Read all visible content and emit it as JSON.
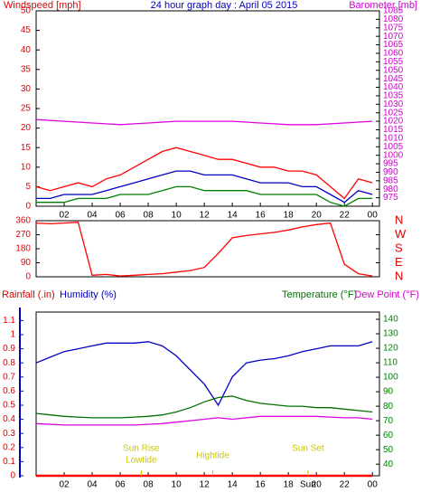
{
  "chart_data": [
    {
      "type": "line",
      "title": "24 hour graph day : April 05 2015",
      "ylabel": "Windspeed [mph]",
      "y2label": "Barometer [mb]",
      "x": [
        0,
        1,
        2,
        3,
        4,
        5,
        6,
        7,
        8,
        9,
        10,
        11,
        12,
        13,
        14,
        15,
        16,
        17,
        18,
        19,
        20,
        21,
        22,
        23,
        24
      ],
      "xlim": [
        0,
        24.5
      ],
      "xticks": [
        {
          "value": 2,
          "label": "02"
        },
        {
          "value": 4,
          "label": "04"
        },
        {
          "value": 6,
          "label": "06"
        },
        {
          "value": 8,
          "label": "08"
        },
        10,
        12,
        14,
        16,
        18,
        20,
        22,
        {
          "value": 24,
          "label": "00"
        }
      ],
      "ylim": [
        0,
        50
      ],
      "yticks": [
        0,
        5,
        10,
        15,
        20,
        25,
        30,
        35,
        40,
        45,
        50
      ],
      "ytick_color": "#e00000",
      "y2lim": [
        970,
        1085
      ],
      "y2ticks": [
        975,
        980,
        985,
        990,
        995,
        1000,
        1005,
        1010,
        1015,
        1020,
        1025,
        1030,
        1035,
        1040,
        1045,
        1050,
        1055,
        1060,
        1065,
        1070,
        1075,
        1080,
        1085
      ],
      "y2tick_color": "#d000d0",
      "series": [
        {
          "color": "#ff0000",
          "values": [
            5,
            4,
            5,
            6,
            5,
            7,
            8,
            10,
            12,
            14,
            15,
            14,
            13,
            12,
            12,
            11,
            10,
            10,
            9,
            9,
            8,
            5,
            2,
            7,
            6
          ]
        },
        {
          "color": "#0000c0",
          "values": [
            2,
            2,
            3,
            3,
            3,
            4,
            5,
            6,
            7,
            8,
            9,
            9,
            8,
            8,
            8,
            7,
            6,
            6,
            6,
            5,
            5,
            3,
            1,
            4,
            3
          ]
        },
        {
          "color": "#008000",
          "values": [
            1,
            1,
            1,
            2,
            2,
            2,
            3,
            3,
            3,
            4,
            5,
            5,
            4,
            4,
            4,
            4,
            3,
            3,
            3,
            3,
            3,
            1,
            0,
            2,
            2
          ]
        },
        {
          "color": "#e000e0",
          "axis": "y2",
          "values": [
            1021,
            1020.5,
            1020,
            1019.5,
            1019,
            1018.5,
            1018,
            1018.5,
            1019,
            1019.5,
            1020,
            1020,
            1020,
            1020,
            1020,
            1019.5,
            1019,
            1018.5,
            1018,
            1018,
            1018,
            1018.5,
            1019,
            1019.5,
            1020
          ]
        }
      ]
    },
    {
      "type": "line",
      "x": [
        0,
        1,
        2,
        3,
        4,
        5,
        6,
        7,
        8,
        9,
        10,
        11,
        12,
        13,
        14,
        15,
        16,
        17,
        18,
        19,
        20,
        21,
        22,
        23,
        24
      ],
      "xlim": [
        0,
        24.5
      ],
      "ylim": [
        0,
        360
      ],
      "yticks": [
        0,
        90,
        180,
        270,
        360
      ],
      "ytick_color": "#e00000",
      "y2lim": [
        0,
        360
      ],
      "y2ticks": [
        {
          "value": 0,
          "label": "N"
        },
        {
          "value": 90,
          "label": "E"
        },
        {
          "value": 180,
          "label": "S"
        },
        {
          "value": 270,
          "label": "W"
        },
        {
          "value": 360,
          "label": "N"
        }
      ],
      "y2tick_color": "#e00000",
      "series": [
        {
          "color": "#ff0000",
          "values": [
            345,
            340,
            345,
            350,
            10,
            15,
            5,
            10,
            15,
            20,
            30,
            40,
            60,
            150,
            250,
            265,
            275,
            285,
            300,
            320,
            335,
            345,
            80,
            20,
            5
          ]
        }
      ]
    },
    {
      "type": "line",
      "ylabel": "Rainfall (.in)",
      "ylabel2": "Humidity (%)",
      "y2label": "Temperature (°F)",
      "y2label2": "Dew Point (°F)",
      "x": [
        0,
        1,
        2,
        3,
        4,
        5,
        6,
        7,
        8,
        9,
        10,
        11,
        12,
        13,
        14,
        15,
        16,
        17,
        18,
        19,
        20,
        21,
        22,
        23,
        24
      ],
      "xlim": [
        0,
        24.5
      ],
      "xticks": [
        {
          "value": 2,
          "label": "02"
        },
        {
          "value": 4,
          "label": "04"
        },
        {
          "value": 6,
          "label": "06"
        },
        {
          "value": 8,
          "label": "08"
        },
        10,
        12,
        14,
        16,
        18,
        20,
        22,
        {
          "value": 24,
          "label": "00"
        }
      ],
      "ylim": [
        0,
        1.16
      ],
      "yticks": [
        0,
        0.1,
        0.2,
        0.3,
        0.4,
        0.5,
        0.6,
        0.7,
        0.8,
        0.9,
        1,
        1.1
      ],
      "ytick_color": "#e00000",
      "y2lim": [
        32,
        145
      ],
      "y2ticks": [
        40,
        50,
        60,
        70,
        80,
        90,
        100,
        110,
        120,
        130,
        140
      ],
      "y2tick_color": "#008000",
      "y3lim": [
        0,
        116
      ],
      "series": [
        {
          "color": "#ff0000",
          "values": [
            0,
            0,
            0,
            0,
            0,
            0,
            0,
            0,
            0,
            0,
            0,
            0,
            0,
            0,
            0,
            0,
            0,
            0,
            0,
            0,
            0,
            0,
            0,
            0,
            0
          ]
        },
        {
          "color": "#0000c0",
          "axis": "y3",
          "values": [
            80,
            84,
            88,
            90,
            92,
            94,
            94,
            94,
            95,
            92,
            85,
            75,
            65,
            50,
            70,
            80,
            82,
            83,
            85,
            88,
            90,
            92,
            92,
            92,
            95
          ]
        },
        {
          "color": "#007000",
          "axis": "y2",
          "values": [
            75,
            74,
            73,
            72.5,
            72,
            72,
            72,
            72.5,
            73,
            74,
            76,
            79,
            83,
            86,
            87,
            84,
            82,
            81,
            80,
            80,
            79,
            79,
            78,
            77,
            76
          ]
        },
        {
          "color": "#e000e0",
          "axis": "y2",
          "values": [
            68,
            67.5,
            67,
            67,
            67,
            67,
            67,
            67,
            67.5,
            68,
            69,
            70,
            71,
            72,
            71,
            72,
            73,
            73,
            73,
            73,
            73,
            72.5,
            72,
            72,
            71
          ]
        }
      ],
      "annotations": [
        {
          "label": "Sun Rise",
          "x": 7.5
        },
        {
          "label": "Lowtide",
          "x": 7.5
        },
        {
          "label": "Hightide",
          "x": 12.6
        },
        {
          "label": "Sun Set",
          "x": 19.4
        },
        {
          "label": "Sun",
          "x": 19.4
        }
      ]
    }
  ]
}
